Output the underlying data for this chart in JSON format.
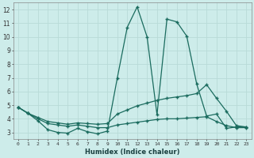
{
  "title": "",
  "xlabel": "Humidex (Indice chaleur)",
  "ylabel": "",
  "bg_color": "#cdecea",
  "grid_color": "#b8dbd8",
  "line_color": "#1a6b5e",
  "xlim": [
    -0.5,
    23.5
  ],
  "ylim": [
    2.5,
    12.5
  ],
  "xticks": [
    0,
    1,
    2,
    3,
    4,
    5,
    6,
    7,
    8,
    9,
    10,
    11,
    12,
    13,
    14,
    15,
    16,
    17,
    18,
    19,
    20,
    21,
    22,
    23
  ],
  "yticks": [
    3,
    4,
    5,
    6,
    7,
    8,
    9,
    10,
    11,
    12
  ],
  "line1_x": [
    0,
    1,
    2,
    3,
    4,
    5,
    6,
    7,
    8,
    9,
    10,
    11,
    12,
    13,
    14,
    15,
    16,
    17,
    18,
    19,
    20,
    21,
    22,
    23
  ],
  "line1_y": [
    4.85,
    4.4,
    3.85,
    3.2,
    3.0,
    2.95,
    3.3,
    3.05,
    2.9,
    3.1,
    7.0,
    10.7,
    12.2,
    10.0,
    4.3,
    11.3,
    11.1,
    10.05,
    6.55,
    4.2,
    4.35,
    3.3,
    3.4,
    3.4
  ],
  "line2_x": [
    0,
    1,
    2,
    3,
    4,
    5,
    6,
    7,
    8,
    9,
    10,
    11,
    12,
    13,
    14,
    15,
    16,
    17,
    18,
    19,
    20,
    21,
    22,
    23
  ],
  "line2_y": [
    4.85,
    4.4,
    4.1,
    3.8,
    3.7,
    3.6,
    3.7,
    3.65,
    3.6,
    3.65,
    4.35,
    4.65,
    4.95,
    5.15,
    5.35,
    5.5,
    5.6,
    5.7,
    5.85,
    6.5,
    5.5,
    4.55,
    3.5,
    3.4
  ],
  "line3_x": [
    0,
    1,
    2,
    3,
    4,
    5,
    6,
    7,
    8,
    9,
    10,
    11,
    12,
    13,
    14,
    15,
    16,
    17,
    18,
    19,
    20,
    21,
    22,
    23
  ],
  "line3_y": [
    4.85,
    4.4,
    4.0,
    3.65,
    3.55,
    3.45,
    3.55,
    3.45,
    3.35,
    3.35,
    3.55,
    3.65,
    3.75,
    3.85,
    3.95,
    4.0,
    4.0,
    4.05,
    4.1,
    4.15,
    3.8,
    3.5,
    3.35,
    3.35
  ]
}
